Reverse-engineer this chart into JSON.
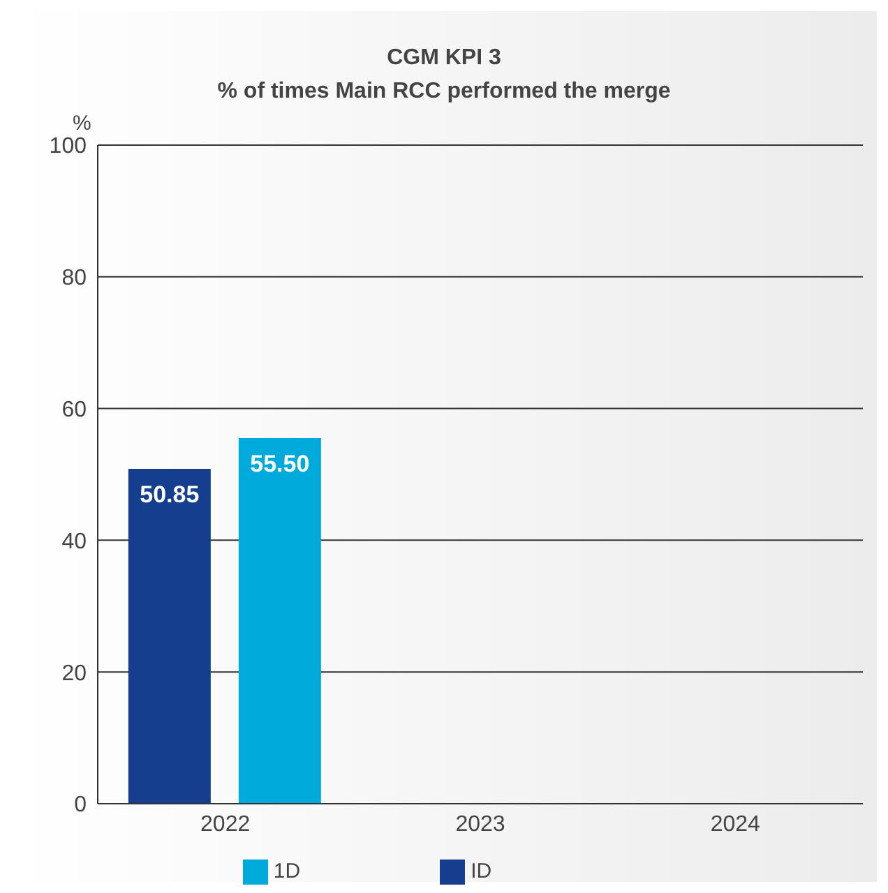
{
  "chart_data": {
    "type": "bar",
    "title": "CGM KPI 3",
    "subtitle": "% of times Main RCC performed the merge",
    "ylabel": "%",
    "categories": [
      "2022",
      "2023",
      "2024"
    ],
    "series": [
      {
        "name": "ID",
        "color": "#163e8f",
        "values": [
          50.85,
          null,
          null
        ],
        "value_labels": [
          "50.85",
          null,
          null
        ]
      },
      {
        "name": "1D",
        "color": "#00aadb",
        "values": [
          55.5,
          null,
          null
        ],
        "value_labels": [
          "55.50",
          null,
          null
        ]
      }
    ],
    "ylim": [
      0,
      100
    ],
    "yticks": [
      0,
      20,
      40,
      60,
      80,
      100
    ],
    "grid": "y",
    "legend": "bottom"
  }
}
